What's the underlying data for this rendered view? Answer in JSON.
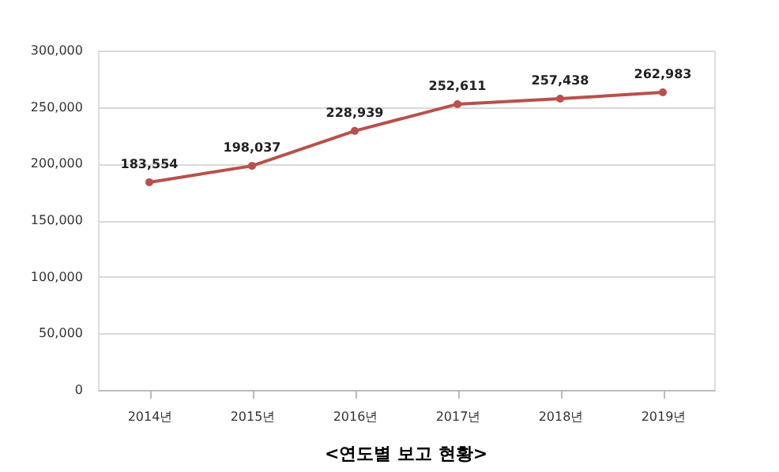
{
  "chart_data": {
    "type": "line",
    "title": "<연도별 보고 현황>",
    "categories": [
      "2014년",
      "2015년",
      "2016년",
      "2017년",
      "2018년",
      "2019년"
    ],
    "series": [
      {
        "color": "#b8504b",
        "values": [
          183554,
          198037,
          228939,
          252611,
          257438,
          262983
        ],
        "value_labels": [
          "183,554",
          "198,037",
          "228,939",
          "252,611",
          "257,438",
          "262,983"
        ]
      }
    ],
    "ylim": [
      0,
      300000
    ],
    "yticks": [
      0,
      {
        "value": 50000,
        "label": "50,000"
      },
      {
        "value": 100000,
        "label": "100,000"
      },
      {
        "value": 150000,
        "label": "150,000"
      },
      {
        "value": 200000,
        "label": "200,000"
      },
      {
        "value": 250000,
        "label": "250,000"
      },
      {
        "value": 300000,
        "label": "300,000"
      }
    ],
    "grid": "y",
    "marker": "circle",
    "line_style": "solid"
  }
}
